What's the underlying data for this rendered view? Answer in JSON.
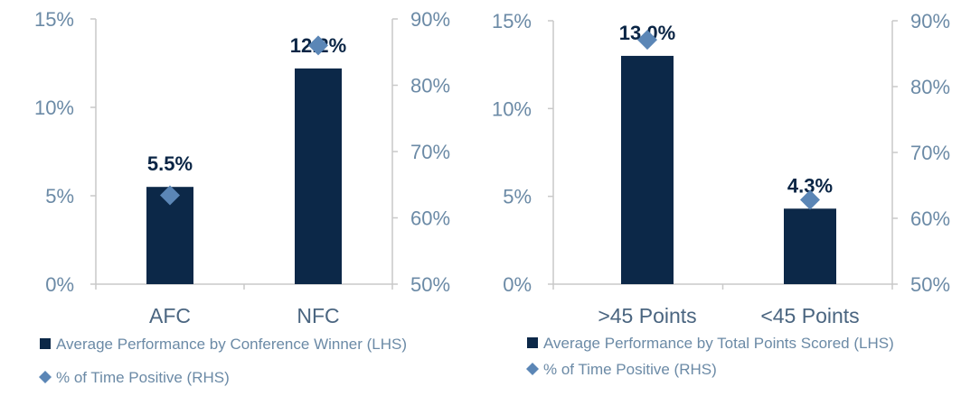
{
  "colors": {
    "bar": "#0c2848",
    "marker": "#5b86b6",
    "tick": "#6b8aa6",
    "axis": "#c9c9c9"
  },
  "chart_data": [
    {
      "type": "bar",
      "categories": [
        "AFC",
        "NFC"
      ],
      "series": [
        {
          "name": "Average Performance by Conference Winner (LHS)",
          "kind": "bar",
          "axis": "left",
          "values": [
            5.5,
            12.2
          ],
          "data_labels": [
            "5.5%",
            "12.2%"
          ]
        },
        {
          "name": "% of Time Positive (RHS)",
          "kind": "marker",
          "axis": "right",
          "values": [
            63.4,
            86.0
          ]
        }
      ],
      "yleft": {
        "lim": [
          0,
          15
        ],
        "ticks": [
          0,
          5,
          10,
          15
        ],
        "tick_labels": [
          "0%",
          "5%",
          "10%",
          "15%"
        ]
      },
      "yright": {
        "lim": [
          50,
          90
        ],
        "ticks": [
          50,
          60,
          70,
          80,
          90
        ],
        "tick_labels": [
          "50%",
          "60%",
          "70%",
          "80%",
          "90%"
        ]
      },
      "legend": [
        "Average Performance by Conference Winner (LHS)",
        "% of Time Positive (RHS)"
      ],
      "legend_position": "bottom-left",
      "grid": false
    },
    {
      "type": "bar",
      "categories": [
        ">45 Points",
        "<45 Points"
      ],
      "series": [
        {
          "name": "Average Performance by Total Points Scored (LHS)",
          "kind": "bar",
          "axis": "left",
          "values": [
            13.0,
            4.3
          ],
          "data_labels": [
            "13.0%",
            "4.3%"
          ]
        },
        {
          "name": "% of Time Positive (RHS)",
          "kind": "marker",
          "axis": "right",
          "values": [
            87.1,
            62.8
          ]
        }
      ],
      "yleft": {
        "lim": [
          0,
          15
        ],
        "ticks": [
          0,
          5,
          10,
          15
        ],
        "tick_labels": [
          "0%",
          "5%",
          "10%",
          "15%"
        ]
      },
      "yright": {
        "lim": [
          50,
          90
        ],
        "ticks": [
          50,
          60,
          70,
          80,
          90
        ],
        "tick_labels": [
          "50%",
          "60%",
          "70%",
          "80%",
          "90%"
        ]
      },
      "legend": [
        "Average Performance by Total Points Scored (LHS)",
        "% of Time Positive (RHS)"
      ],
      "legend_position": "bottom-left",
      "grid": false
    }
  ]
}
